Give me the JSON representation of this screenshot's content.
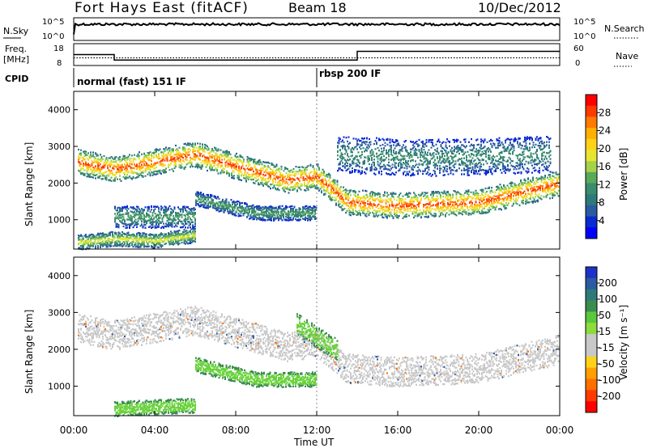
{
  "header": {
    "station": "Fort Hays East (fitACF)",
    "beam": "Beam 18",
    "date": "10/Dec/2012"
  },
  "noise_panel": {
    "left_label": "N.Sky",
    "right_label": "N.Search",
    "left_ticks": [
      "10^5",
      "10^0"
    ],
    "right_ticks": [
      "10^5",
      "10^0"
    ]
  },
  "freq_panel": {
    "left_label_1": "Freq.",
    "left_label_2": "[MHz]",
    "right_label": "Nave",
    "left_ticks": [
      "18",
      "8"
    ],
    "right_ticks": [
      "60",
      "0"
    ]
  },
  "cpid_panel": {
    "label": "CPID",
    "mode_1": "normal (fast) 151 IF",
    "mode_2": "rbsp 200 IF"
  },
  "colorbars": {
    "power": {
      "label": "Power [dB]",
      "ticks": [
        "28",
        "24",
        "20",
        "16",
        "12",
        "8",
        "4"
      ],
      "colors": [
        "#ff0000",
        "#ff3a00",
        "#ff7a00",
        "#ffb000",
        "#ffd21a",
        "#e6e632",
        "#a6d24a",
        "#5aa85a",
        "#3a8c6e",
        "#2e7a7a",
        "#2a5aa0",
        "#0a2ad2",
        "#0000ff"
      ]
    },
    "velocity": {
      "label": "Velocity [m s⁻¹]",
      "ticks": [
        "200",
        "100",
        "50",
        "15",
        "-15",
        "-50",
        "-100",
        "-200"
      ],
      "colors": [
        "#1e32c8",
        "#2a5aa0",
        "#2e7a7a",
        "#3a8c50",
        "#5ac83c",
        "#8cdc3c",
        "#c8c8c8",
        "#c8c8c8",
        "#ffd21a",
        "#ffa000",
        "#ff7000",
        "#ff3a00",
        "#ff0000"
      ]
    }
  },
  "time_axis": {
    "label": "Time UT",
    "ticks": [
      "00:00",
      "04:00",
      "08:00",
      "12:00",
      "16:00",
      "20:00",
      "00:00"
    ]
  },
  "chart_data": [
    {
      "type": "line",
      "name": "noise",
      "x_range_hours": [
        0,
        24
      ],
      "y_ticks": [
        "10^0",
        "10^5"
      ],
      "series": [
        {
          "x": [
            0,
            24
          ],
          "y": [
            "10^4",
            "10^4"
          ]
        }
      ]
    },
    {
      "type": "line",
      "name": "frequency",
      "x_range_hours": [
        0,
        24
      ],
      "series": [
        {
          "x": [
            0,
            2,
            2,
            14,
            14,
            24
          ],
          "y": [
            13,
            13,
            10.5,
            10.5,
            14.5,
            14.5
          ]
        },
        {
          "x": [
            0,
            24
          ],
          "y": [
            11.5,
            11.5
          ]
        }
      ]
    },
    {
      "type": "table",
      "name": "cpid",
      "modes": [
        {
          "start_hour": 0,
          "end_hour": 12,
          "label": "normal (fast) 151 IF"
        },
        {
          "start_hour": 12,
          "end_hour": 24,
          "label": "rbsp 200 IF"
        }
      ]
    },
    {
      "type": "heatmap",
      "name": "power",
      "ylabel": "Slant Range [km]",
      "xlabel": "Time UT",
      "x_range_hours": [
        0,
        24
      ],
      "ylim": [
        200,
        4500
      ],
      "y_ticks": [
        1000,
        2000,
        3000,
        4000
      ],
      "zlabel": "Power [dB]",
      "zlim": [
        0,
        30
      ],
      "bands": [
        {
          "x": [
            0.2,
            1.0,
            2.0,
            6.0,
            8.5,
            10.5,
            12.0,
            13.5,
            16.0,
            20.0,
            23.9
          ],
          "y_center": [
            2600,
            2500,
            2400,
            2800,
            2400,
            2100,
            2200,
            1500,
            1400,
            1500,
            2000
          ],
          "width": 350,
          "peak_db": 28
        },
        {
          "x": [
            0.2,
            2.0,
            4.0,
            6.0
          ],
          "y_center": [
            400,
            500,
            450,
            600
          ],
          "width": 200,
          "peak_db": 18
        },
        {
          "x": [
            2.0,
            6.0
          ],
          "y_center": [
            1100,
            1100
          ],
          "width": 300,
          "peak_db": 12
        },
        {
          "x": [
            6.0,
            9.0,
            12.0
          ],
          "y_center": [
            1600,
            1200,
            1200
          ],
          "width": 200,
          "peak_db": 12
        },
        {
          "x": [
            13.0,
            17.0,
            23.5
          ],
          "y_center": [
            2800,
            2700,
            2800
          ],
          "width": 500,
          "peak_db": 10
        }
      ]
    },
    {
      "type": "heatmap",
      "name": "velocity",
      "ylabel": "Slant Range [km]",
      "xlabel": "Time UT",
      "x_range_hours": [
        0,
        24
      ],
      "ylim": [
        200,
        4500
      ],
      "y_ticks": [
        1000,
        2000,
        3000,
        4000
      ],
      "zlabel": "Velocity [m s^-1]",
      "zlim": [
        -200,
        200
      ],
      "bands": [
        {
          "x": [
            0.2,
            1.0,
            2.0,
            6.0,
            8.5,
            10.5,
            12.0,
            13.5,
            16.0,
            20.0,
            23.9
          ],
          "y_center": [
            2600,
            2500,
            2400,
            2800,
            2400,
            2100,
            2200,
            1500,
            1400,
            1500,
            2000
          ],
          "width": 400,
          "velocity": 0
        },
        {
          "x": [
            2.0,
            6.0
          ],
          "y_center": [
            400,
            500
          ],
          "width": 200,
          "velocity": 60
        },
        {
          "x": [
            6.0,
            9.0,
            12.0
          ],
          "y_center": [
            1600,
            1200,
            1200
          ],
          "width": 200,
          "velocity": 60
        },
        {
          "x": [
            11.0,
            13.0
          ],
          "y_center": [
            2700,
            2000
          ],
          "width": 300,
          "velocity": 60
        }
      ]
    }
  ]
}
